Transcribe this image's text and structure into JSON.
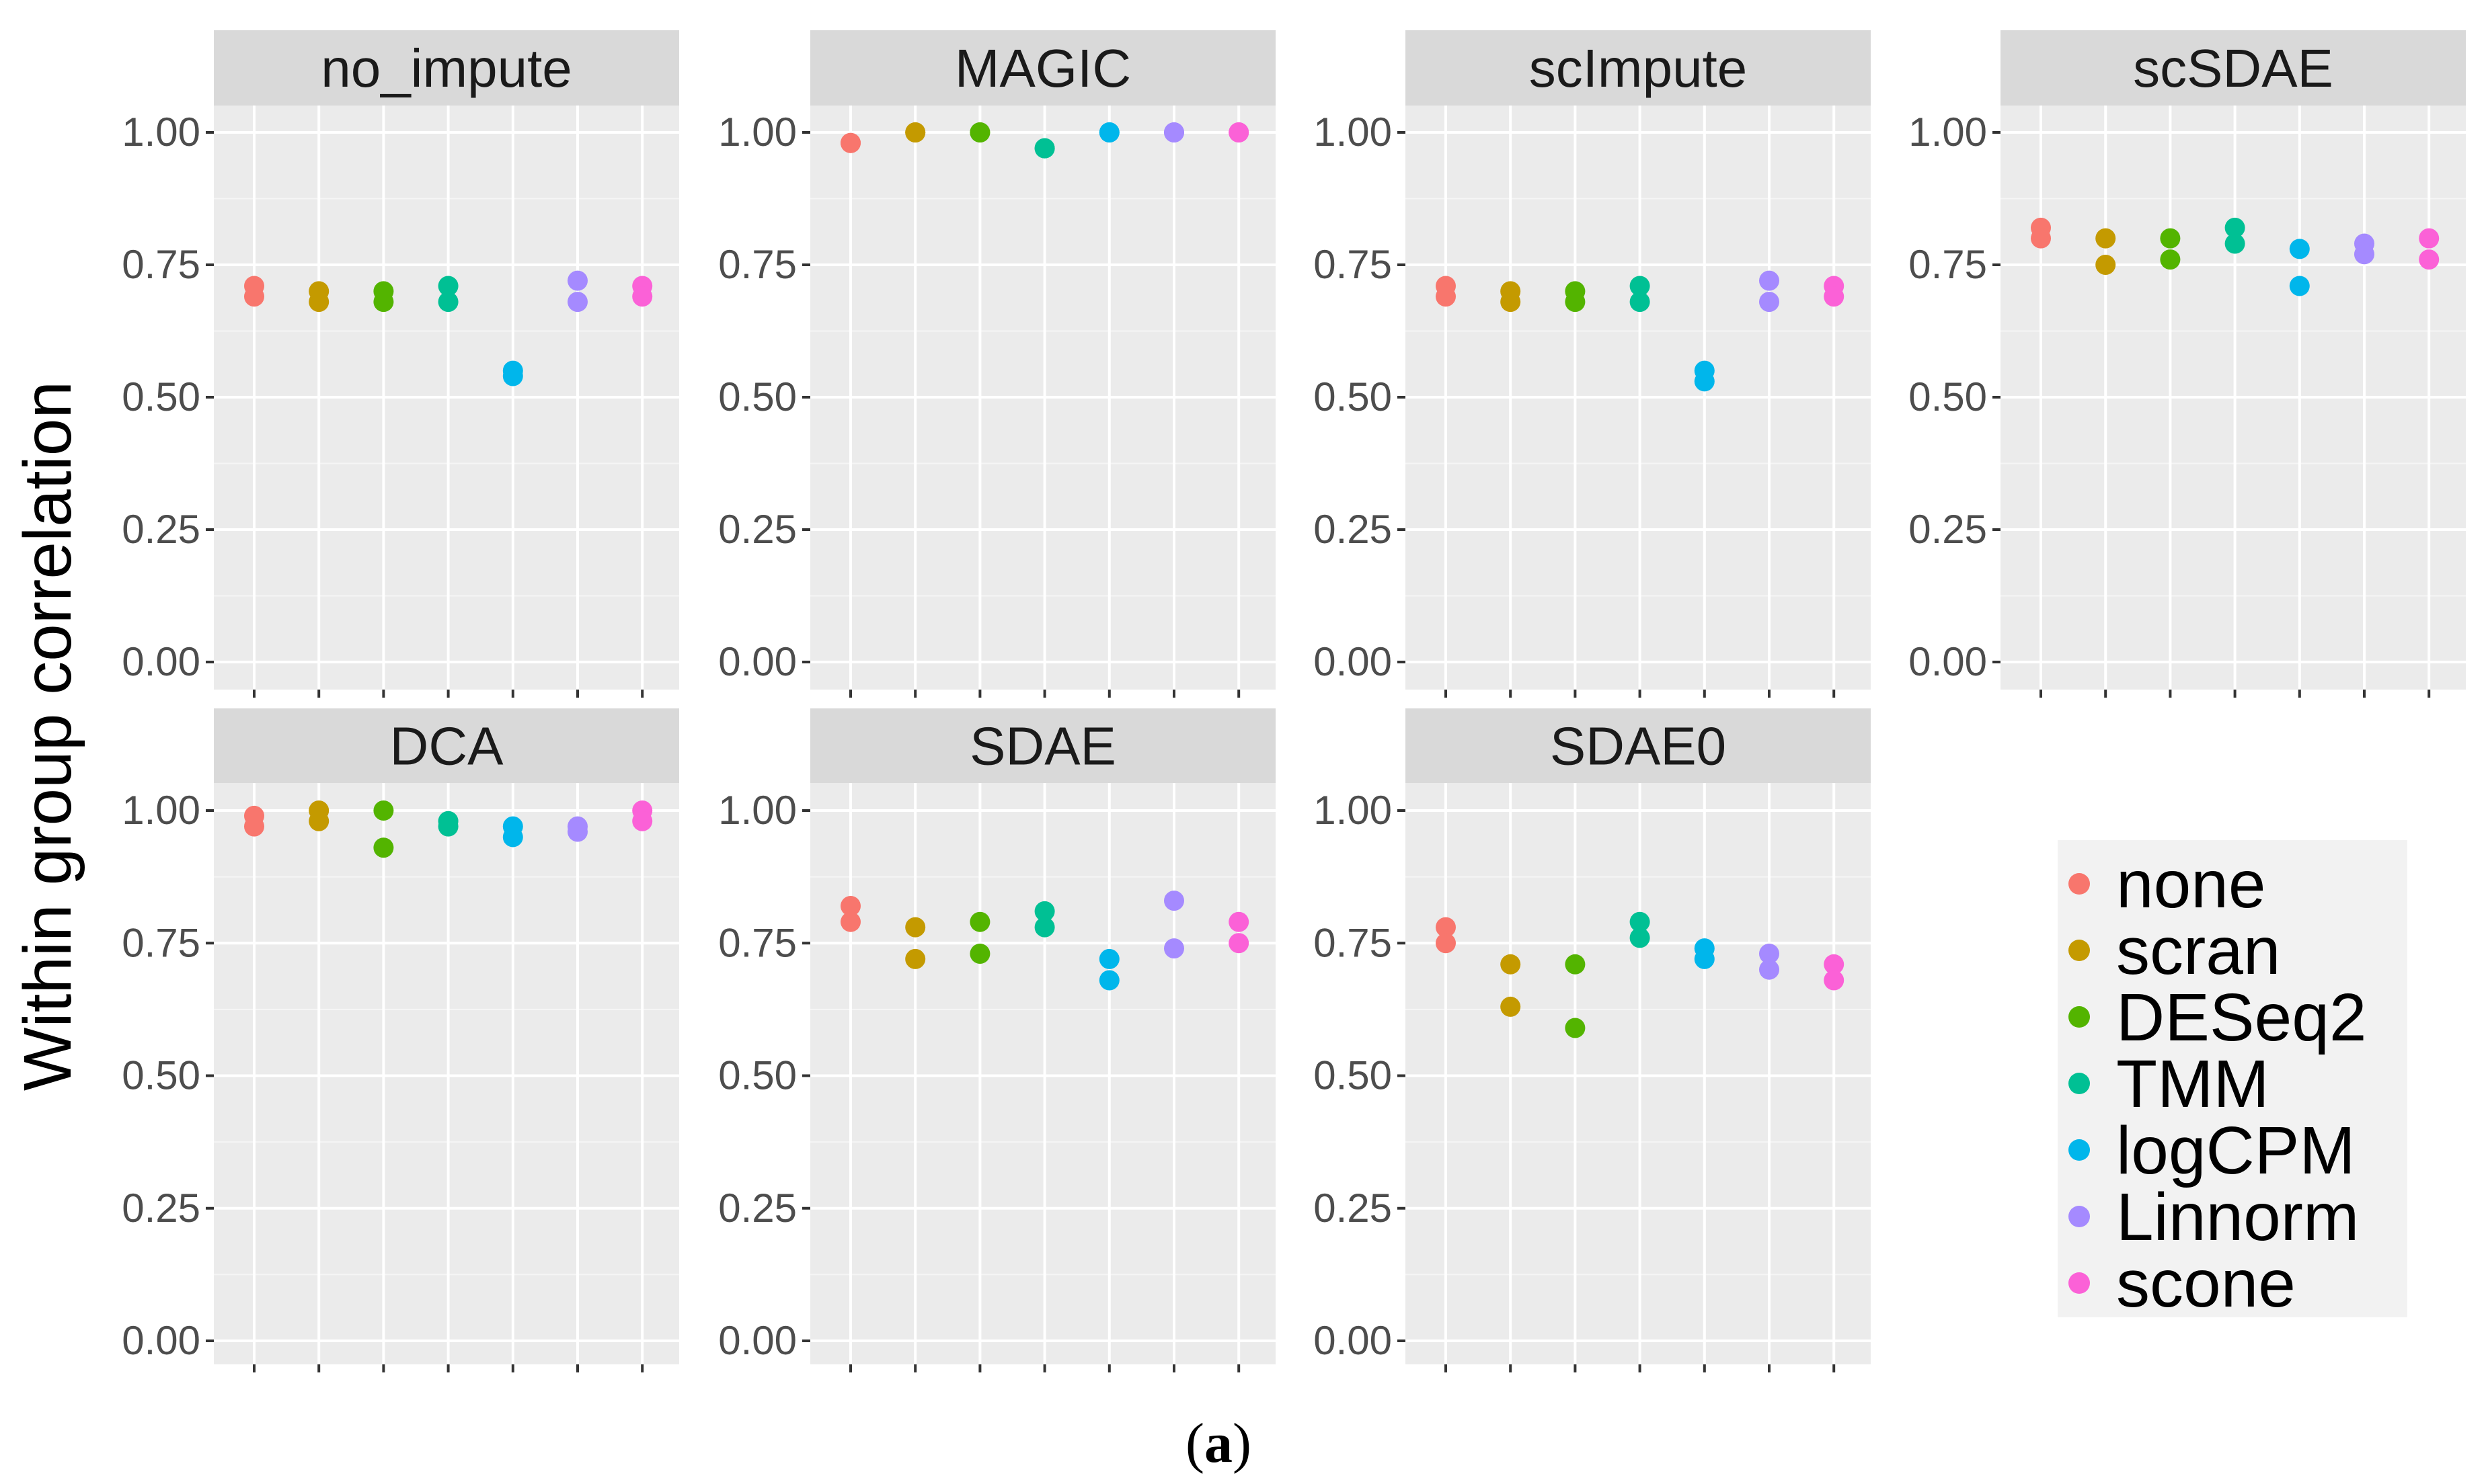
{
  "figure_caption": {
    "open": "(",
    "letter": "a",
    "close": ")"
  },
  "chart_data": {
    "type": "scatter",
    "ylabel": "Within group correlation",
    "xlabel": "",
    "ylim": [
      0,
      1.1
    ],
    "yticks": [
      0,
      0.25,
      0.5,
      0.75,
      1.0
    ],
    "ytick_labels": [
      "0.00",
      "0.25",
      "0.50",
      "0.75",
      "1.00"
    ],
    "grid": true,
    "legend_position": "right",
    "methods": [
      "none",
      "scran",
      "DESeq2",
      "TMM",
      "logCPM",
      "Linnorm",
      "scone"
    ],
    "colors": [
      "#F8766D",
      "#C49A00",
      "#53B400",
      "#00C094",
      "#00B6EB",
      "#A58AFF",
      "#FB61D7"
    ],
    "panels": [
      {
        "title": "no_impute",
        "values": [
          [
            0.71,
            0.69
          ],
          [
            0.7,
            0.68
          ],
          [
            0.7,
            0.68
          ],
          [
            0.71,
            0.68
          ],
          [
            0.55,
            0.54
          ],
          [
            0.72,
            0.68
          ],
          [
            0.71,
            0.69
          ]
        ]
      },
      {
        "title": "MAGIC",
        "values": [
          [
            0.98,
            0.98
          ],
          [
            1.0,
            1.0
          ],
          [
            1.0,
            1.0
          ],
          [
            0.97,
            0.97
          ],
          [
            1.0,
            1.0
          ],
          [
            1.0,
            1.0
          ],
          [
            1.0,
            1.0
          ]
        ]
      },
      {
        "title": "scImpute",
        "values": [
          [
            0.71,
            0.69
          ],
          [
            0.7,
            0.68
          ],
          [
            0.7,
            0.68
          ],
          [
            0.71,
            0.68
          ],
          [
            0.55,
            0.53
          ],
          [
            0.72,
            0.68
          ],
          [
            0.71,
            0.69
          ]
        ]
      },
      {
        "title": "scSDAE",
        "values": [
          [
            0.82,
            0.8
          ],
          [
            0.8,
            0.75
          ],
          [
            0.8,
            0.76
          ],
          [
            0.82,
            0.79
          ],
          [
            0.78,
            0.71
          ],
          [
            0.79,
            0.77
          ],
          [
            0.8,
            0.76
          ]
        ]
      },
      {
        "title": "DCA",
        "values": [
          [
            0.99,
            0.97
          ],
          [
            1.0,
            0.98
          ],
          [
            1.0,
            0.93
          ],
          [
            0.98,
            0.97
          ],
          [
            0.97,
            0.95
          ],
          [
            0.97,
            0.96
          ],
          [
            1.0,
            0.98
          ]
        ]
      },
      {
        "title": "SDAE",
        "values": [
          [
            0.82,
            0.79
          ],
          [
            0.78,
            0.72
          ],
          [
            0.79,
            0.73
          ],
          [
            0.81,
            0.78
          ],
          [
            0.72,
            0.68
          ],
          [
            0.83,
            0.74
          ],
          [
            0.79,
            0.75
          ]
        ]
      },
      {
        "title": "SDAE0",
        "values": [
          [
            0.78,
            0.75
          ],
          [
            0.71,
            0.63
          ],
          [
            0.71,
            0.59
          ],
          [
            0.79,
            0.76
          ],
          [
            0.74,
            0.72
          ],
          [
            0.73,
            0.7
          ],
          [
            0.71,
            0.68
          ]
        ]
      }
    ]
  }
}
